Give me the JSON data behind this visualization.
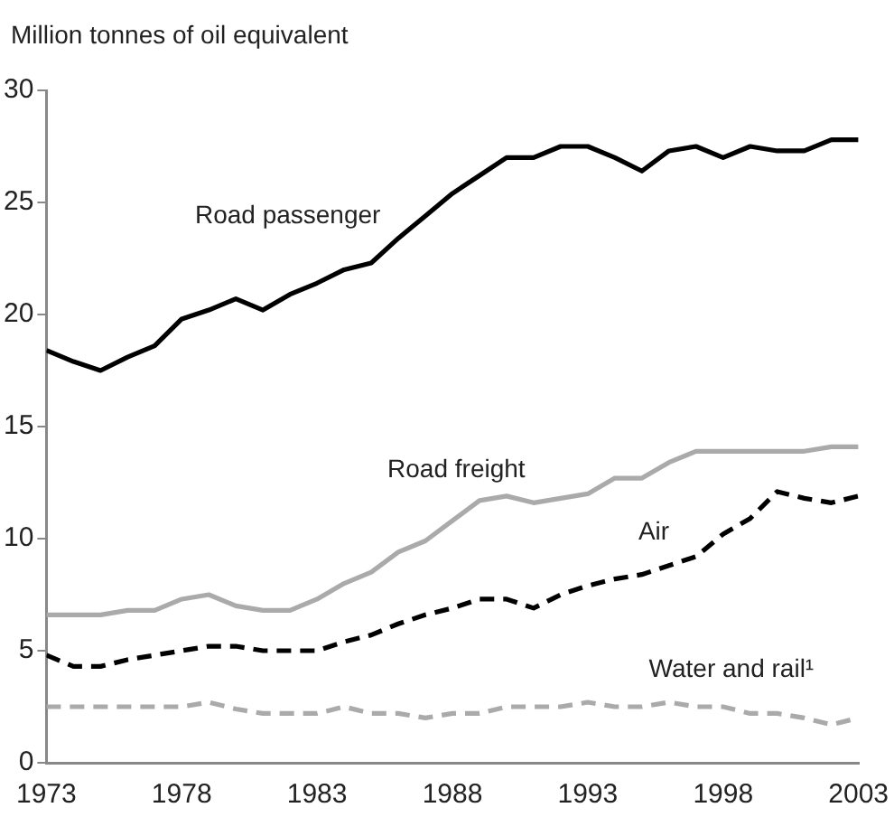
{
  "chart_data": {
    "type": "line",
    "ylabel": "Million tonnes of oil equivalent",
    "x": [
      1973,
      1974,
      1975,
      1976,
      1977,
      1978,
      1979,
      1980,
      1981,
      1982,
      1983,
      1984,
      1985,
      1986,
      1987,
      1988,
      1989,
      1990,
      1991,
      1992,
      1993,
      1994,
      1995,
      1996,
      1997,
      1998,
      1999,
      2000,
      2001,
      2002,
      2003
    ],
    "xlim": [
      1973,
      2003
    ],
    "xticks": [
      1973,
      1978,
      1983,
      1988,
      1993,
      1998,
      2003
    ],
    "ylim": [
      0,
      30
    ],
    "yticks": [
      0,
      5,
      10,
      15,
      20,
      25,
      30
    ],
    "grid": false,
    "legend": false,
    "marker": "none",
    "series": [
      {
        "name": "Road passenger",
        "color": "#000000",
        "line_style": "solid",
        "values": [
          18.4,
          17.9,
          17.5,
          18.1,
          18.6,
          19.8,
          20.2,
          20.7,
          20.2,
          20.9,
          21.4,
          22.0,
          22.3,
          23.4,
          24.4,
          25.4,
          26.2,
          27.0,
          27.0,
          27.5,
          27.5,
          27.0,
          26.4,
          27.3,
          27.5,
          27.0,
          27.5,
          27.3,
          27.3,
          27.8,
          27.8
        ]
      },
      {
        "name": "Road freight",
        "color": "#aaaaaa",
        "line_style": "solid",
        "values": [
          6.6,
          6.6,
          6.6,
          6.8,
          6.8,
          7.3,
          7.5,
          7.0,
          6.8,
          6.8,
          7.3,
          8.0,
          8.5,
          9.4,
          9.9,
          10.8,
          11.7,
          11.9,
          11.6,
          11.8,
          12.0,
          12.7,
          12.7,
          13.4,
          13.9,
          13.9,
          13.9,
          13.9,
          13.9,
          14.1,
          14.1
        ]
      },
      {
        "name": "Air",
        "color": "#000000",
        "line_style": "dashed",
        "values": [
          4.8,
          4.3,
          4.3,
          4.6,
          4.8,
          5.0,
          5.2,
          5.2,
          5.0,
          5.0,
          5.0,
          5.4,
          5.7,
          6.2,
          6.6,
          6.9,
          7.3,
          7.3,
          6.9,
          7.5,
          7.9,
          8.2,
          8.4,
          8.8,
          9.2,
          10.2,
          10.9,
          12.1,
          11.8,
          11.6,
          11.9
        ]
      },
      {
        "name": "Water and rail¹",
        "color": "#aaaaaa",
        "line_style": "dashed",
        "values": [
          2.5,
          2.5,
          2.5,
          2.5,
          2.5,
          2.5,
          2.7,
          2.4,
          2.2,
          2.2,
          2.2,
          2.5,
          2.2,
          2.2,
          2.0,
          2.2,
          2.2,
          2.5,
          2.5,
          2.5,
          2.7,
          2.5,
          2.5,
          2.7,
          2.5,
          2.5,
          2.2,
          2.2,
          2.0,
          1.7,
          2.0
        ]
      }
    ]
  }
}
